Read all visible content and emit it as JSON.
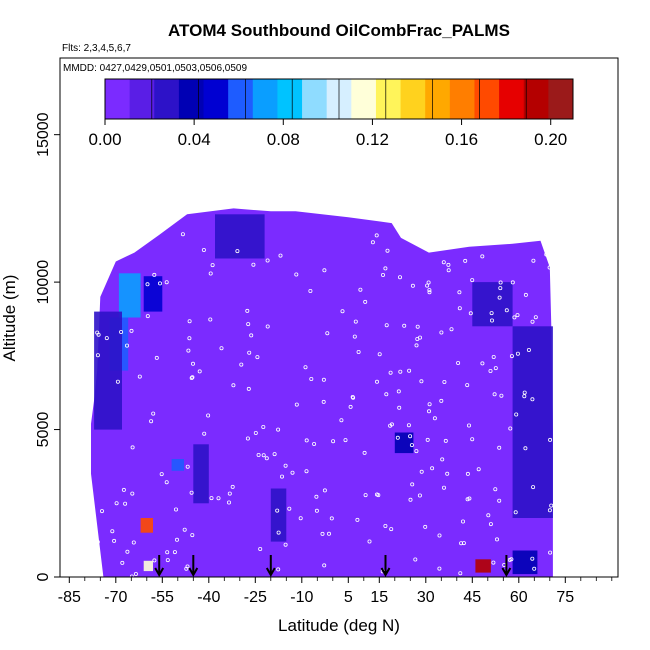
{
  "header": {
    "title": "ATOM4 Southbound OilCombFrac_PALMS",
    "flights_label": "Flts: 2,3,4,5,6,7",
    "dates_label": "MMDD: 0427,0429,0501,0503,0506,0509"
  },
  "chart_data": {
    "type": "heatmap",
    "title": "ATOM4 Southbound OilCombFrac_PALMS",
    "xlabel": "Latitude (deg N)",
    "ylabel": "Altitude (m)",
    "xlim": [
      -88,
      92
    ],
    "ylim": [
      0,
      17600
    ],
    "x_ticks": [
      -85,
      -70,
      -55,
      -40,
      -25,
      -10,
      5,
      15,
      30,
      45,
      60,
      75
    ],
    "y_ticks": [
      0,
      5000,
      10000,
      15000
    ],
    "colorbar": {
      "min": 0.0,
      "max": 0.21,
      "tick_values": [
        0.0,
        0.04,
        0.08,
        0.12,
        0.16,
        0.2
      ],
      "tick_labels": [
        "0.00",
        "0.04",
        "0.08",
        "0.12",
        "0.16",
        "0.20"
      ],
      "colors": [
        "#7b2bff",
        "#5a1ee6",
        "#2d12c8",
        "#0000b4",
        "#0000d2",
        "#1e5cff",
        "#0a9eff",
        "#00c3ff",
        "#8fdcff",
        "#d6efff",
        "#ffffd9",
        "#fff45a",
        "#ffd21e",
        "#ffa800",
        "#ff7e00",
        "#ff4a00",
        "#e60000",
        "#b40000",
        "#9b1a1a"
      ]
    },
    "background_value": 0.01,
    "patches": [
      {
        "lat": [
          -69,
          -62
        ],
        "alt": [
          8800,
          10300
        ],
        "value": 0.07
      },
      {
        "lat": [
          -72,
          -66
        ],
        "alt": [
          7000,
          8800
        ],
        "value": 0.06
      },
      {
        "lat": [
          -61,
          -55
        ],
        "alt": [
          9000,
          10200
        ],
        "value": 0.05
      },
      {
        "lat": [
          -62,
          -58
        ],
        "alt": [
          1500,
          2000
        ],
        "value": 0.17
      },
      {
        "lat": [
          -61,
          -58
        ],
        "alt": [
          200,
          550
        ],
        "value": 0.12
      },
      {
        "lat": [
          -52,
          -48
        ],
        "alt": [
          3600,
          4000
        ],
        "value": 0.06
      },
      {
        "lat": [
          46,
          51
        ],
        "alt": [
          150,
          600
        ],
        "value": 0.19
      },
      {
        "lat": [
          -38,
          -22
        ],
        "alt": [
          10800,
          12300
        ],
        "value": 0.03
      },
      {
        "lat": [
          -77,
          -68
        ],
        "alt": [
          5000,
          9000
        ],
        "value": 0.03
      },
      {
        "lat": [
          58,
          71
        ],
        "alt": [
          2000,
          8500
        ],
        "value": 0.03
      },
      {
        "lat": [
          45,
          58
        ],
        "alt": [
          8500,
          10000
        ],
        "value": 0.03
      },
      {
        "lat": [
          20,
          26
        ],
        "alt": [
          4200,
          4900
        ],
        "value": 0.04
      },
      {
        "lat": [
          -45,
          -40
        ],
        "alt": [
          2500,
          4500
        ],
        "value": 0.025
      },
      {
        "lat": [
          -20,
          -15
        ],
        "alt": [
          1200,
          3000
        ],
        "value": 0.03
      },
      {
        "lat": [
          58,
          66
        ],
        "alt": [
          100,
          900
        ],
        "value": 0.04
      }
    ],
    "arrow_latitudes": [
      -56,
      -45,
      -20,
      17,
      56
    ]
  }
}
